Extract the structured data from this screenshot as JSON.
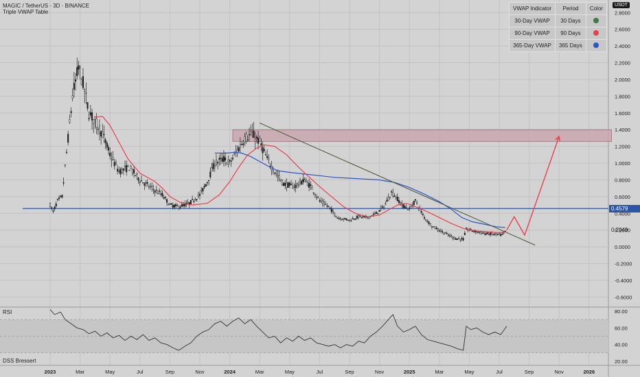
{
  "header": {
    "symbol_line": "MAGIC / TetherUS · 3D · BINANCE",
    "indicator_name": "Triple VWAP Table"
  },
  "currency_badge": "USDT",
  "vwap_table": {
    "headers": [
      "VWAP Indicator",
      "Period",
      "Color"
    ],
    "rows": [
      {
        "indicator": "30-Day VWAP",
        "period": "30 Days",
        "color": "#3f7a45"
      },
      {
        "indicator": "90-Day VWAP",
        "period": "90 Days",
        "color": "#e8404a"
      },
      {
        "indicator": "365-Day VWAP",
        "period": "365 Days",
        "color": "#2b55c8"
      }
    ]
  },
  "price_tags": {
    "horizontal_level": "0.4579",
    "last_price": "0.2049"
  },
  "rsi_pane": {
    "label": "RSI"
  },
  "dss_pane": {
    "label": "DSS Bressert"
  },
  "colors": {
    "background": "#d3d3d3",
    "candles": "#222222",
    "vwap_90": "#e8404a",
    "vwap_365": "#2b55c8",
    "horizontal_line": "#2b55a8",
    "trendline": "#4a5a3a",
    "resistance_zone": "#c9a6b0",
    "projection_arrow": "#e8404a",
    "rsi_line": "#333333"
  },
  "chart_data": {
    "type": "candlestick",
    "price_axis": {
      "ticks": [
        2.8,
        2.6,
        2.4,
        2.2,
        2.0,
        1.8,
        1.6,
        1.4,
        1.2,
        1.0,
        0.8,
        0.6,
        0.4,
        0.2,
        0.0,
        -0.2,
        -0.4,
        -0.6
      ],
      "tick_labels": [
        "2.8000",
        "2.6000",
        "2.4000",
        "2.2000",
        "2.0000",
        "1.8000",
        "1.6000",
        "1.4000",
        "1.2000",
        "1.0000",
        "0.8000",
        "0.6000",
        "0.4000",
        "0.2000",
        "0.0000",
        "-0.2000",
        "-0.4000",
        "-0.6000"
      ],
      "range": [
        -0.72,
        2.95
      ]
    },
    "time_axis": {
      "labels": [
        "2023",
        "Mar",
        "May",
        "Jul",
        "Sep",
        "Nov",
        "2024",
        "Mar",
        "May",
        "Jul",
        "Sep",
        "Nov",
        "2025",
        "Mar",
        "May",
        "Jul",
        "Sep",
        "Nov",
        "2026"
      ],
      "months": [
        0,
        2,
        4,
        6,
        8,
        10,
        12,
        14,
        16,
        18,
        20,
        22,
        24,
        26,
        28,
        30,
        32,
        34,
        36
      ]
    },
    "price_path": [
      [
        0.0,
        0.5
      ],
      [
        0.2,
        0.42
      ],
      [
        0.5,
        0.55
      ],
      [
        0.8,
        0.6
      ],
      [
        1.2,
        1.3
      ],
      [
        1.5,
        1.8
      ],
      [
        1.9,
        2.15
      ],
      [
        2.2,
        1.95
      ],
      [
        2.6,
        1.6
      ],
      [
        3.0,
        1.5
      ],
      [
        3.5,
        1.35
      ],
      [
        4.0,
        1.1
      ],
      [
        4.6,
        0.9
      ],
      [
        5.3,
        0.95
      ],
      [
        6.0,
        0.8
      ],
      [
        6.8,
        0.7
      ],
      [
        7.5,
        0.62
      ],
      [
        8.0,
        0.5
      ],
      [
        8.6,
        0.48
      ],
      [
        9.3,
        0.52
      ],
      [
        10.0,
        0.62
      ],
      [
        10.5,
        0.78
      ],
      [
        11.0,
        1.0
      ],
      [
        11.6,
        1.05
      ],
      [
        12.0,
        1.0
      ],
      [
        12.5,
        1.15
      ],
      [
        13.0,
        1.3
      ],
      [
        13.5,
        1.35
      ],
      [
        14.0,
        1.25
      ],
      [
        14.5,
        1.05
      ],
      [
        15.0,
        0.9
      ],
      [
        15.6,
        0.75
      ],
      [
        16.3,
        0.72
      ],
      [
        17.0,
        0.8
      ],
      [
        17.5,
        0.7
      ],
      [
        18.0,
        0.55
      ],
      [
        18.6,
        0.48
      ],
      [
        19.2,
        0.35
      ],
      [
        20.0,
        0.32
      ],
      [
        20.6,
        0.36
      ],
      [
        21.2,
        0.35
      ],
      [
        21.8,
        0.4
      ],
      [
        22.3,
        0.48
      ],
      [
        22.8,
        0.65
      ],
      [
        23.1,
        0.6
      ],
      [
        23.5,
        0.5
      ],
      [
        24.0,
        0.45
      ],
      [
        24.4,
        0.55
      ],
      [
        25.0,
        0.35
      ],
      [
        25.5,
        0.25
      ],
      [
        26.0,
        0.2
      ],
      [
        26.6,
        0.14
      ],
      [
        27.1,
        0.1
      ],
      [
        27.6,
        0.09
      ],
      [
        27.8,
        0.21
      ],
      [
        28.3,
        0.19
      ],
      [
        29.0,
        0.16
      ],
      [
        29.6,
        0.15
      ],
      [
        30.2,
        0.14
      ],
      [
        30.5,
        0.2
      ]
    ],
    "vwap_90_path": [
      [
        3.0,
        1.55
      ],
      [
        3.5,
        1.56
      ],
      [
        4.0,
        1.45
      ],
      [
        4.6,
        1.25
      ],
      [
        5.2,
        1.05
      ],
      [
        6.0,
        0.88
      ],
      [
        7.0,
        0.78
      ],
      [
        7.5,
        0.7
      ],
      [
        8.0,
        0.6
      ],
      [
        8.8,
        0.52
      ],
      [
        9.5,
        0.5
      ],
      [
        10.5,
        0.52
      ],
      [
        11.3,
        0.62
      ],
      [
        12.0,
        0.78
      ],
      [
        12.6,
        0.95
      ],
      [
        13.2,
        1.1
      ],
      [
        13.8,
        1.18
      ],
      [
        14.3,
        1.22
      ],
      [
        15.0,
        1.2
      ],
      [
        15.8,
        1.1
      ],
      [
        16.6,
        0.95
      ],
      [
        17.2,
        0.85
      ],
      [
        18.0,
        0.72
      ],
      [
        18.8,
        0.6
      ],
      [
        19.6,
        0.48
      ],
      [
        20.4,
        0.4
      ],
      [
        21.2,
        0.36
      ],
      [
        22.0,
        0.38
      ],
      [
        22.6,
        0.44
      ],
      [
        23.2,
        0.5
      ],
      [
        23.8,
        0.52
      ],
      [
        24.4,
        0.48
      ],
      [
        25.2,
        0.42
      ],
      [
        26.0,
        0.35
      ],
      [
        26.8,
        0.28
      ],
      [
        27.6,
        0.22
      ],
      [
        28.4,
        0.19
      ],
      [
        29.2,
        0.18
      ],
      [
        30.0,
        0.17
      ],
      [
        30.4,
        0.18
      ]
    ],
    "vwap_365_path": [
      [
        11.0,
        1.12
      ],
      [
        11.8,
        1.12
      ],
      [
        12.3,
        1.13
      ],
      [
        12.8,
        1.12
      ],
      [
        13.4,
        1.08
      ],
      [
        14.0,
        1.02
      ],
      [
        14.6,
        0.96
      ],
      [
        15.2,
        0.91
      ],
      [
        16.0,
        0.89
      ],
      [
        17.0,
        0.87
      ],
      [
        18.0,
        0.85
      ],
      [
        19.0,
        0.83
      ],
      [
        20.0,
        0.82
      ],
      [
        21.0,
        0.81
      ],
      [
        22.0,
        0.8
      ],
      [
        23.0,
        0.77
      ],
      [
        24.0,
        0.71
      ],
      [
        25.0,
        0.63
      ],
      [
        26.0,
        0.54
      ],
      [
        26.8,
        0.45
      ],
      [
        27.5,
        0.35
      ],
      [
        28.2,
        0.3
      ],
      [
        29.0,
        0.27
      ],
      [
        29.8,
        0.24
      ],
      [
        30.4,
        0.23
      ]
    ],
    "horizontal_level": 0.4579,
    "trendline": [
      [
        14.0,
        1.48
      ],
      [
        32.4,
        0.02
      ]
    ],
    "resistance_zone": {
      "x_from": 12.2,
      "x_to": 37.5,
      "y_from": 1.26,
      "y_to": 1.4
    },
    "projection_path": [
      [
        30.5,
        0.2
      ],
      [
        31.0,
        0.36
      ],
      [
        31.7,
        0.14
      ],
      [
        34.0,
        1.32
      ]
    ],
    "rsi": {
      "ticks": [
        80,
        60,
        40,
        20
      ],
      "tick_labels": [
        "80.00",
        "60.00",
        "40.00",
        "20.00"
      ],
      "range": [
        15,
        85
      ],
      "band": [
        30,
        70
      ],
      "path": [
        [
          0.0,
          82
        ],
        [
          0.3,
          76
        ],
        [
          0.7,
          79
        ],
        [
          1.0,
          70
        ],
        [
          1.4,
          65
        ],
        [
          1.8,
          60
        ],
        [
          2.2,
          58
        ],
        [
          2.6,
          53
        ],
        [
          3.0,
          56
        ],
        [
          3.4,
          50
        ],
        [
          3.8,
          54
        ],
        [
          4.2,
          48
        ],
        [
          4.6,
          51
        ],
        [
          5.0,
          45
        ],
        [
          5.4,
          50
        ],
        [
          5.8,
          46
        ],
        [
          6.2,
          52
        ],
        [
          6.6,
          45
        ],
        [
          7.0,
          48
        ],
        [
          7.4,
          42
        ],
        [
          7.8,
          40
        ],
        [
          8.2,
          36
        ],
        [
          8.6,
          33
        ],
        [
          9.0,
          38
        ],
        [
          9.4,
          42
        ],
        [
          9.8,
          50
        ],
        [
          10.2,
          55
        ],
        [
          10.6,
          58
        ],
        [
          11.0,
          65
        ],
        [
          11.4,
          68
        ],
        [
          11.8,
          62
        ],
        [
          12.2,
          68
        ],
        [
          12.6,
          72
        ],
        [
          13.0,
          65
        ],
        [
          13.4,
          70
        ],
        [
          13.8,
          62
        ],
        [
          14.2,
          55
        ],
        [
          14.6,
          48
        ],
        [
          15.0,
          50
        ],
        [
          15.4,
          42
        ],
        [
          15.8,
          48
        ],
        [
          16.2,
          44
        ],
        [
          16.6,
          50
        ],
        [
          17.0,
          45
        ],
        [
          17.4,
          48
        ],
        [
          17.8,
          42
        ],
        [
          18.2,
          40
        ],
        [
          18.6,
          38
        ],
        [
          19.0,
          40
        ],
        [
          19.4,
          36
        ],
        [
          19.8,
          40
        ],
        [
          20.2,
          38
        ],
        [
          20.6,
          44
        ],
        [
          21.0,
          42
        ],
        [
          21.4,
          50
        ],
        [
          21.8,
          55
        ],
        [
          22.2,
          62
        ],
        [
          22.6,
          70
        ],
        [
          22.9,
          76
        ],
        [
          23.2,
          62
        ],
        [
          23.6,
          55
        ],
        [
          24.0,
          58
        ],
        [
          24.4,
          62
        ],
        [
          24.8,
          52
        ],
        [
          25.2,
          46
        ],
        [
          25.6,
          44
        ],
        [
          26.0,
          42
        ],
        [
          26.4,
          40
        ],
        [
          26.8,
          38
        ],
        [
          27.2,
          35
        ],
        [
          27.6,
          33
        ],
        [
          27.8,
          62
        ],
        [
          28.1,
          58
        ],
        [
          28.5,
          60
        ],
        [
          28.9,
          55
        ],
        [
          29.3,
          52
        ],
        [
          29.7,
          55
        ],
        [
          30.1,
          52
        ],
        [
          30.5,
          62
        ]
      ]
    }
  }
}
